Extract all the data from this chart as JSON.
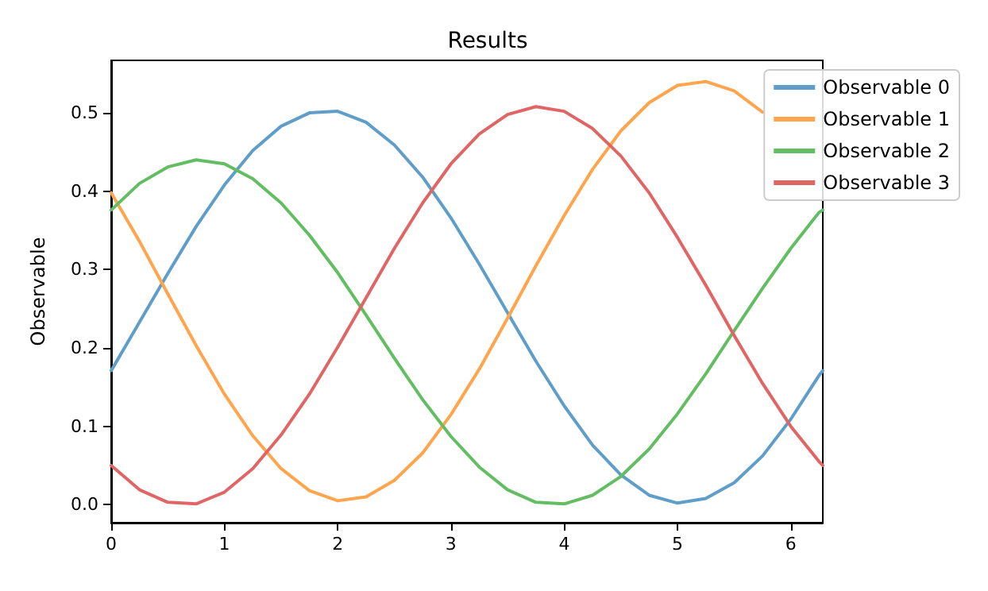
{
  "chart_data": {
    "type": "line",
    "title": "Results",
    "ylabel": "Observable",
    "x": [
      0,
      0.25,
      0.5,
      0.75,
      1,
      1.25,
      1.5,
      1.75,
      2,
      2.25,
      2.5,
      2.75,
      3,
      3.25,
      3.5,
      3.75,
      4,
      4.25,
      4.5,
      4.75,
      5,
      5.25,
      5.5,
      5.75,
      6,
      6.25,
      6.283
    ],
    "series": [
      {
        "name": "Observable 0",
        "color": "#5f9ec9",
        "values": [
          0.171,
          0.233,
          0.295,
          0.355,
          0.408,
          0.452,
          0.483,
          0.5,
          0.502,
          0.488,
          0.459,
          0.418,
          0.366,
          0.307,
          0.245,
          0.183,
          0.126,
          0.076,
          0.038,
          0.012,
          0.002,
          0.008,
          0.028,
          0.062,
          0.109,
          0.165,
          0.171
        ]
      },
      {
        "name": "Observable 1",
        "color": "#ffa54d",
        "values": [
          0.398,
          0.336,
          0.269,
          0.203,
          0.141,
          0.088,
          0.046,
          0.018,
          0.005,
          0.01,
          0.031,
          0.066,
          0.115,
          0.173,
          0.238,
          0.305,
          0.369,
          0.428,
          0.477,
          0.513,
          0.535,
          0.54,
          0.528,
          0.501,
          null,
          null,
          null
        ]
      },
      {
        "name": "Observable 2",
        "color": "#63bd63",
        "values": [
          0.376,
          0.41,
          0.431,
          0.44,
          0.435,
          0.416,
          0.385,
          0.344,
          0.296,
          0.242,
          0.187,
          0.134,
          0.087,
          0.048,
          0.019,
          0.003,
          0.001,
          0.012,
          0.036,
          0.071,
          0.116,
          0.167,
          0.222,
          0.276,
          0.327,
          0.373,
          0.376
        ]
      },
      {
        "name": "Observable 3",
        "color": "#e06666",
        "values": [
          0.05,
          0.019,
          0.003,
          0.001,
          0.016,
          0.046,
          0.089,
          0.141,
          0.201,
          0.264,
          0.327,
          0.385,
          0.435,
          0.473,
          0.498,
          0.508,
          0.502,
          0.48,
          0.445,
          0.398,
          0.341,
          0.28,
          0.216,
          0.155,
          0.1,
          0.055,
          0.05
        ]
      }
    ],
    "xlim": [
      0,
      6.283
    ],
    "xticks": [
      0,
      1,
      2,
      3,
      4,
      5,
      6
    ],
    "ylim": [
      -0.023,
      0.567
    ],
    "yticks": [
      {
        "value": 0,
        "label": "0.0"
      },
      {
        "value": 0.1,
        "label": "0.1"
      },
      {
        "value": 0.2,
        "label": "0.2"
      },
      {
        "value": 0.3,
        "label": "0.3"
      },
      {
        "value": 0.4,
        "label": "0.4"
      },
      {
        "value": 0.5,
        "label": "0.5"
      }
    ],
    "grid": false,
    "legend": "top right",
    "marker": "none",
    "line_style": "solid"
  }
}
